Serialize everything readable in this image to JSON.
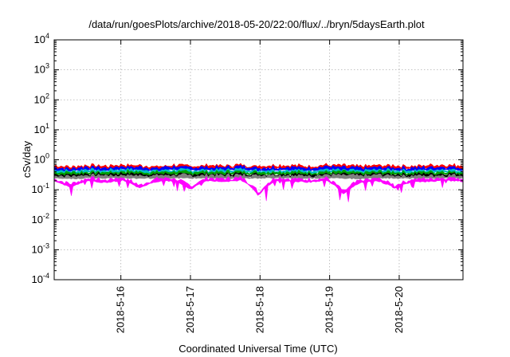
{
  "chart_data": {
    "type": "area",
    "title": "/data/run/goesPlots/archive/2018-05-20/22:00/flux/../bryn/5daysEarth.plot",
    "xlabel": "Coordinated Universal Time (UTC)",
    "ylabel": "cSv/day",
    "y_scale": "log",
    "ylim": [
      0.0001,
      10000
    ],
    "y_ticks": [
      {
        "value": 0.0001,
        "mantissa": "10",
        "exp": "-4"
      },
      {
        "value": 0.001,
        "mantissa": "10",
        "exp": "-3"
      },
      {
        "value": 0.01,
        "mantissa": "10",
        "exp": "-2"
      },
      {
        "value": 0.1,
        "mantissa": "10",
        "exp": "-1"
      },
      {
        "value": 1,
        "mantissa": "10",
        "exp": "0"
      },
      {
        "value": 10,
        "mantissa": "10",
        "exp": "1"
      },
      {
        "value": 100,
        "mantissa": "10",
        "exp": "2"
      },
      {
        "value": 1000,
        "mantissa": "10",
        "exp": "3"
      },
      {
        "value": 10000,
        "mantissa": "10",
        "exp": "4"
      }
    ],
    "xlim": [
      "2018-05-15 01:00",
      "2018-05-20 22:00"
    ],
    "x_ticks": [
      "2018-5-16",
      "2018-5-17",
      "2018-5-18",
      "2018-5-19",
      "2018-5-20"
    ],
    "grid": true,
    "series": [
      {
        "color": "#ff0000",
        "level": 0.65,
        "values": [
          0.6,
          0.55,
          0.62,
          0.58,
          0.65,
          0.6,
          0.57,
          0.63,
          0.59,
          0.61,
          0.6,
          0.64,
          0.58,
          0.62,
          0.6,
          0.59,
          0.63,
          0.6,
          0.57,
          0.62,
          0.6,
          0.58,
          0.61,
          0.63,
          0.6
        ]
      },
      {
        "color": "#0000ff",
        "level": 0.55,
        "values": [
          0.52,
          0.48,
          0.55,
          0.5,
          0.56,
          0.53,
          0.5,
          0.55,
          0.52,
          0.53,
          0.52,
          0.56,
          0.5,
          0.54,
          0.52,
          0.51,
          0.55,
          0.52,
          0.49,
          0.54,
          0.52,
          0.5,
          0.53,
          0.55,
          0.52
        ]
      },
      {
        "color": "#00c0c0",
        "level": 0.45,
        "values": [
          0.42,
          0.4,
          0.45,
          0.41,
          0.46,
          0.43,
          0.41,
          0.45,
          0.42,
          0.43,
          0.42,
          0.46,
          0.41,
          0.44,
          0.42,
          0.41,
          0.45,
          0.42,
          0.4,
          0.44,
          0.42,
          0.41,
          0.43,
          0.45,
          0.42
        ]
      },
      {
        "color": "#00a000",
        "level": 0.38,
        "values": [
          0.37,
          0.35,
          0.38,
          0.36,
          0.39,
          0.37,
          0.36,
          0.38,
          0.37,
          0.37,
          0.37,
          0.39,
          0.36,
          0.38,
          0.37,
          0.36,
          0.38,
          0.37,
          0.35,
          0.38,
          0.37,
          0.36,
          0.37,
          0.38,
          0.37
        ]
      },
      {
        "color": "#000000",
        "level": 0.32,
        "values": [
          0.31,
          0.3,
          0.32,
          0.31,
          0.33,
          0.32,
          0.31,
          0.32,
          0.31,
          0.32,
          0.31,
          0.33,
          0.31,
          0.32,
          0.31,
          0.31,
          0.32,
          0.31,
          0.3,
          0.32,
          0.31,
          0.31,
          0.32,
          0.32,
          0.31
        ]
      },
      {
        "color": "#808080",
        "level": 0.29,
        "values": [
          0.28,
          0.27,
          0.29,
          0.28,
          0.29,
          0.28,
          0.28,
          0.29,
          0.28,
          0.29,
          0.28,
          0.29,
          0.28,
          0.29,
          0.28,
          0.28,
          0.29,
          0.28,
          0.27,
          0.29,
          0.28,
          0.28,
          0.28,
          0.29,
          0.28
        ]
      },
      {
        "color": "#ff00ff",
        "level": 0.24,
        "values": [
          0.22,
          0.14,
          0.23,
          0.2,
          0.24,
          0.13,
          0.22,
          0.23,
          0.12,
          0.23,
          0.22,
          0.24,
          0.07,
          0.23,
          0.22,
          0.21,
          0.23,
          0.08,
          0.2,
          0.23,
          0.13,
          0.21,
          0.22,
          0.24,
          0.22
        ]
      }
    ]
  }
}
